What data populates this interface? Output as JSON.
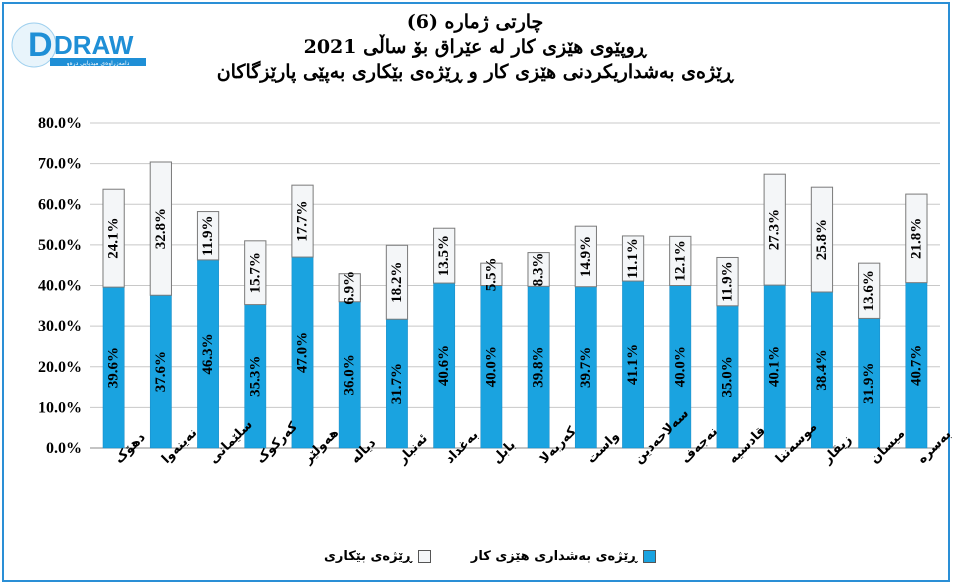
{
  "logo": {
    "text": "DRAW",
    "subtext": "دامەزراوەی میدیایی درەو"
  },
  "title": {
    "line1": "چارتی ژمارە (6)",
    "line2": "ڕوپێوی هێزی کار لە عێراق بۆ ساڵی 2021",
    "line3": "ڕێژەی بەشداریکردنی هێزی کار و ڕێژەی بێکاری بەپێی پارێزگاکان"
  },
  "colors": {
    "participation": "#1aa3e0",
    "unemployment": "#f4f6f8",
    "frame": "#2a8fd6"
  },
  "chart_data": {
    "type": "bar",
    "stacked": true,
    "categories": [
      "دهۆک",
      "نەینەوا",
      "سلێمانی",
      "کەرکوک",
      "هەولێر",
      "دیالە",
      "ئەنبار",
      "بەغداد",
      "بابل",
      "کەربەلا",
      "واست",
      "سەلاحەدین",
      "نەجەف",
      "قادسیە",
      "موسەننا",
      "زیقار",
      "میسان",
      "بەسرە"
    ],
    "series": [
      {
        "name": "ڕێژەی بەشداری هێزی کار",
        "values": [
          39.6,
          37.6,
          46.3,
          35.3,
          47.0,
          36.0,
          31.7,
          40.6,
          40.0,
          39.8,
          39.7,
          41.1,
          40.0,
          35.0,
          40.1,
          38.4,
          31.9,
          40.7
        ]
      },
      {
        "name": "ڕێژەی بێکاری",
        "values": [
          24.1,
          32.8,
          11.9,
          15.7,
          17.7,
          6.9,
          18.2,
          13.5,
          5.5,
          8.3,
          14.9,
          11.1,
          12.1,
          11.9,
          27.3,
          25.8,
          13.6,
          21.8
        ]
      }
    ],
    "yticks": [
      "0.0%",
      "10.0%",
      "20.0%",
      "30.0%",
      "40.0%",
      "50.0%",
      "60.0%",
      "70.0%",
      "80.0%"
    ],
    "ylim": [
      0,
      80
    ],
    "grid": true,
    "legend_position": "bottom"
  }
}
